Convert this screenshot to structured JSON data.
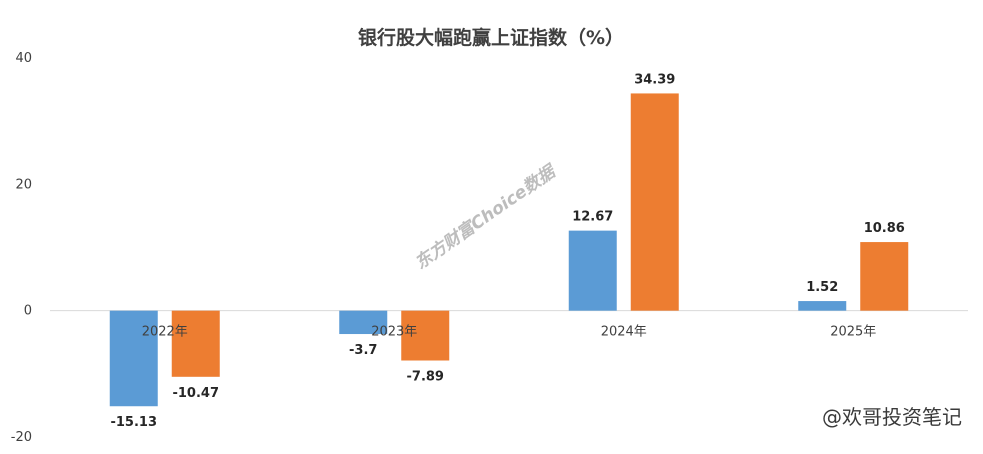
{
  "chart_data": {
    "type": "bar",
    "title": "银行股大幅跑赢上证指数（%）",
    "categories": [
      "2022年",
      "2023年",
      "2024年",
      "2025年"
    ],
    "series": [
      {
        "values": [
          -15.13,
          -3.7,
          12.67,
          1.52
        ],
        "color": "#5B9BD5"
      },
      {
        "values": [
          -10.47,
          -7.89,
          34.39,
          10.86
        ],
        "color": "#ED7D31"
      }
    ],
    "ylim": [
      -20,
      40
    ],
    "yticks": [
      -20,
      0,
      20,
      40
    ],
    "grid": false,
    "legend": "none"
  },
  "watermark": "东方财富Choice数据",
  "credit": "@欢哥投资笔记"
}
